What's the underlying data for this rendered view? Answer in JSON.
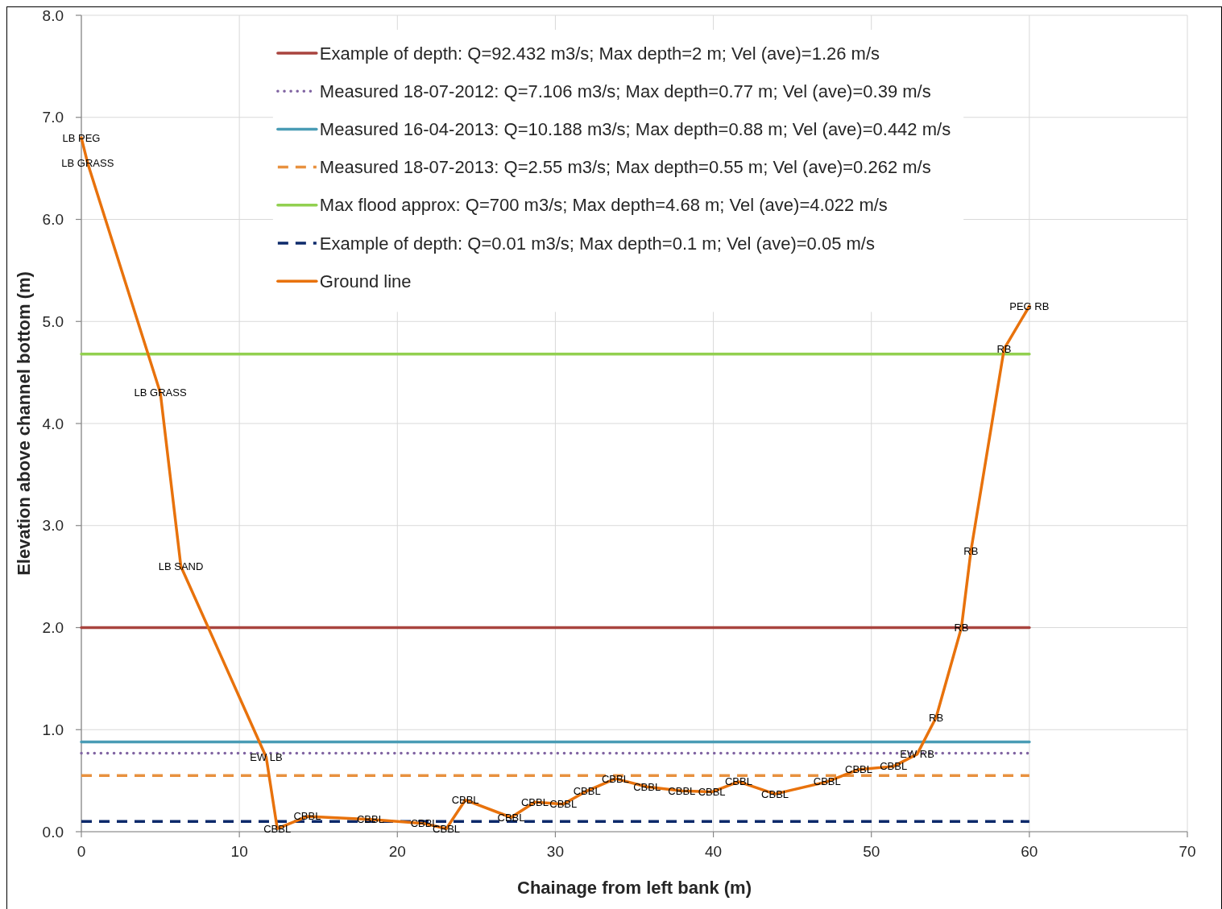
{
  "chart_data": {
    "type": "line",
    "xlabel": "Chainage from left bank (m)",
    "ylabel": "Elevation above channel bottom (m)",
    "xlim": [
      0,
      70
    ],
    "ylim": [
      0,
      8
    ],
    "xticks": [
      0,
      10,
      20,
      30,
      40,
      50,
      60,
      70
    ],
    "yticks": [
      {
        "value": 0,
        "label": "0.0"
      },
      {
        "value": 1,
        "label": "1.0"
      },
      {
        "value": 2,
        "label": "2.0"
      },
      {
        "value": 3,
        "label": "3.0"
      },
      {
        "value": 4,
        "label": "4.0"
      },
      {
        "value": 5,
        "label": "5.0"
      },
      {
        "value": 6,
        "label": "6.0"
      },
      {
        "value": 7,
        "label": "7.0"
      },
      {
        "value": 8,
        "label": "8.0"
      }
    ],
    "grid": true,
    "legend": "top",
    "series": [
      {
        "name": "Example of depth: Q=92.432 m3/s; Max depth=2 m; Vel (ave)=1.26 m/s",
        "color": "#a9443f",
        "line_style": "solid",
        "x": [
          0,
          60
        ],
        "values": [
          2,
          2
        ]
      },
      {
        "name": "Measured 18-07-2012: Q=7.106 m3/s; Max depth=0.77 m; Vel (ave)=0.39 m/s",
        "color": "#8064a2",
        "line_style": "dotted",
        "x": [
          0,
          60
        ],
        "values": [
          0.77,
          0.77
        ]
      },
      {
        "name": "Measured 16-04-2013: Q=10.188 m3/s; Max depth=0.88 m; Vel (ave)=0.442 m/s",
        "color": "#4a9cb5",
        "line_style": "solid",
        "x": [
          0,
          60
        ],
        "values": [
          0.88,
          0.88
        ]
      },
      {
        "name": "Measured 18-07-2013: Q=2.55 m3/s; Max depth=0.55 m; Vel (ave)=0.262 m/s",
        "color": "#e8913f",
        "line_style": "dashed",
        "x": [
          0,
          60
        ],
        "values": [
          0.55,
          0.55
        ]
      },
      {
        "name": "Max flood approx: Q=700 m3/s; Max depth=4.68 m; Vel (ave)=4.022 m/s",
        "color": "#92d050",
        "line_style": "solid",
        "x": [
          0,
          60
        ],
        "values": [
          4.68,
          4.68
        ]
      },
      {
        "name": "Example of depth: Q=0.01 m3/s; Max depth=0.1 m; Vel (ave)=0.05 m/s",
        "color": "#0d2a6b",
        "line_style": "dashed",
        "x": [
          0,
          60
        ],
        "values": [
          0.1,
          0.1
        ]
      },
      {
        "name": "Ground line",
        "color": "#e8720c",
        "line_style": "solid",
        "x": [
          0,
          0.4,
          5.0,
          6.3,
          11.7,
          12.4,
          14.3,
          18.3,
          21.7,
          23.1,
          24.3,
          27.2,
          28.7,
          30.5,
          32.0,
          33.8,
          35.8,
          38.0,
          39.9,
          41.6,
          43.9,
          47.2,
          49.2,
          51.4,
          52.9,
          54.1,
          55.7,
          56.3,
          58.4,
          60.0
        ],
        "values": [
          6.8,
          6.55,
          4.3,
          2.6,
          0.73,
          0.03,
          0.15,
          0.12,
          0.08,
          0.03,
          0.31,
          0.14,
          0.29,
          0.27,
          0.4,
          0.52,
          0.44,
          0.4,
          0.39,
          0.49,
          0.37,
          0.49,
          0.61,
          0.64,
          0.76,
          1.12,
          2.0,
          2.75,
          4.73,
          5.15
        ],
        "value_labels": [
          "LB PEG",
          "LB GRASS",
          "LB GRASS",
          "LB SAND",
          "EW LB",
          "CBBL",
          "CBBL",
          "CBBL",
          "CBBL",
          "CBBL",
          "CBBL",
          "CBBL",
          "CBBL",
          "CBBL",
          "CBBL",
          "CBBL",
          "CBBL",
          "CBBL",
          "CBBL",
          "CBBL",
          "CBBL",
          "CBBL",
          "CBBL",
          "CBBL",
          "EW RB",
          "RB",
          "RB",
          "RB",
          "RB",
          "PEG RB"
        ]
      }
    ]
  }
}
